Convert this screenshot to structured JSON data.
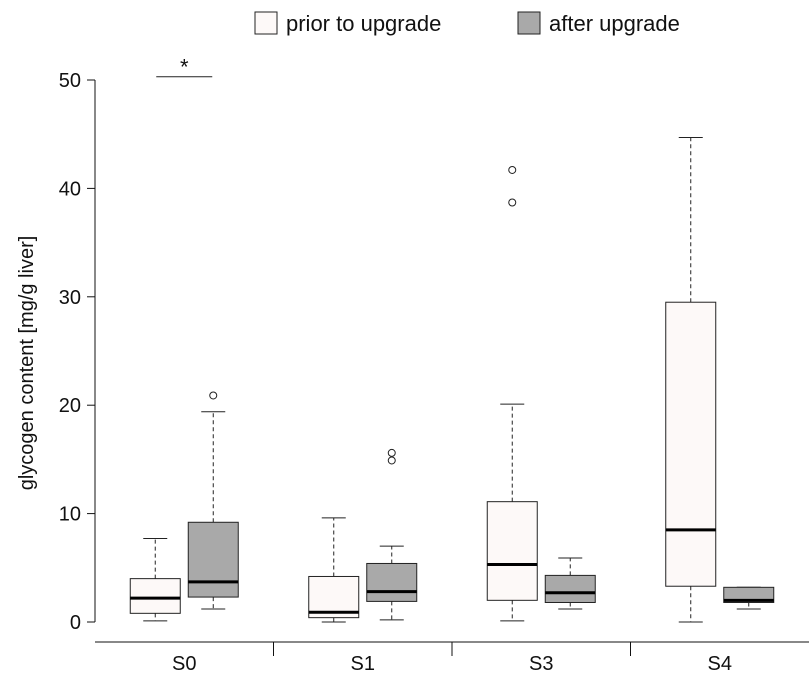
{
  "chart_data": {
    "type": "boxplot",
    "title": "",
    "xlabel": "",
    "ylabel": "glycogen content [mg/g liver]",
    "ylim": [
      0,
      50
    ],
    "yticks": [
      0,
      10,
      20,
      30,
      40,
      50
    ],
    "categories": [
      "S0",
      "S1",
      "S3",
      "S4"
    ],
    "legend_position": "top",
    "series": [
      {
        "name": "prior to upgrade",
        "color": "#fdf9f8",
        "boxes": [
          {
            "min": 0.1,
            "q1": 0.8,
            "median": 2.2,
            "q3": 4.0,
            "max": 7.7,
            "outliers": []
          },
          {
            "min": 0.0,
            "q1": 0.4,
            "median": 0.9,
            "q3": 4.2,
            "max": 9.6,
            "outliers": []
          },
          {
            "min": 0.1,
            "q1": 2.0,
            "median": 5.3,
            "q3": 11.1,
            "max": 20.1,
            "outliers": [
              38.7,
              41.7
            ]
          },
          {
            "min": 0.0,
            "q1": 3.3,
            "median": 8.5,
            "q3": 29.5,
            "max": 44.7,
            "outliers": []
          }
        ]
      },
      {
        "name": "after upgrade",
        "color": "#a9a9a9",
        "boxes": [
          {
            "min": 1.2,
            "q1": 2.3,
            "median": 3.7,
            "q3": 9.2,
            "max": 19.4,
            "outliers": [
              20.9
            ]
          },
          {
            "min": 0.2,
            "q1": 1.9,
            "median": 2.8,
            "q3": 5.4,
            "max": 7.0,
            "outliers": [
              14.9,
              15.6
            ]
          },
          {
            "min": 1.2,
            "q1": 1.8,
            "median": 2.7,
            "q3": 4.3,
            "max": 5.9,
            "outliers": []
          },
          {
            "min": 1.2,
            "q1": 1.8,
            "median": 2.0,
            "q3": 3.2,
            "max": 3.2,
            "outliers": []
          }
        ]
      }
    ],
    "annotations": [
      {
        "text": "*",
        "category": "S0",
        "y": 50.3
      }
    ]
  }
}
